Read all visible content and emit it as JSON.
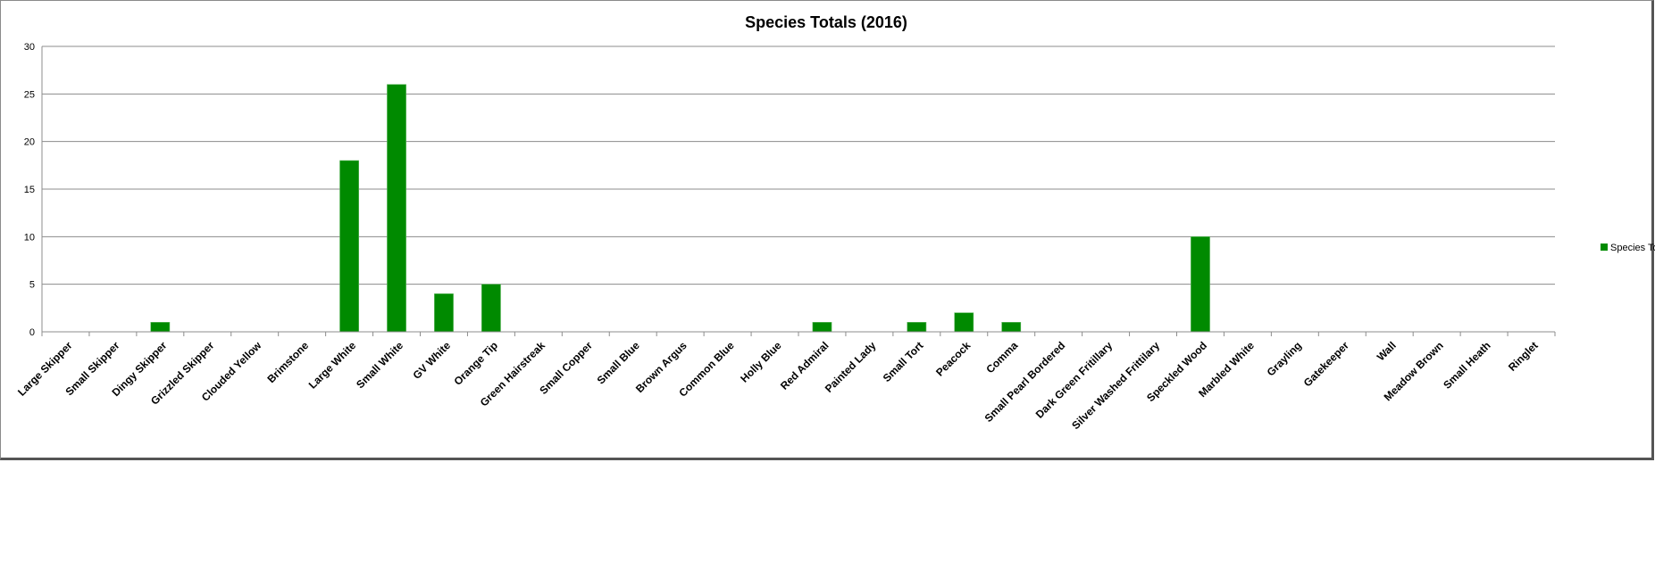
{
  "chart_data": {
    "type": "bar",
    "title": "Species Totals (2016)",
    "xlabel": "",
    "ylabel": "",
    "ylim": [
      0,
      30
    ],
    "yticks": [
      0,
      5,
      10,
      15,
      20,
      25,
      30
    ],
    "grid": true,
    "legend_position": "right",
    "categories": [
      "Large Skipper",
      "Small Skipper",
      "Dingy Skipper",
      "Grizzled Skipper",
      "Clouded Yellow",
      "Brimstone",
      "Large White",
      "Small White",
      "GV White",
      "Orange Tip",
      "Green Hairstreak",
      "Small Copper",
      "Small Blue",
      "Brown Argus",
      "Common Blue",
      "Holly Blue",
      "Red Admiral",
      "Painted Lady",
      "Small Tort",
      "Peacock",
      "Comma",
      "Small Pearl Bordered",
      "Dark Green Fritillary",
      "Silver Washed Frittilary",
      "Speckled Wood",
      "Marbled White",
      "Grayling",
      "Gatekeeper",
      "Wall",
      "Meadow Brown",
      "Small Heath",
      "Ringlet"
    ],
    "series": [
      {
        "name": "Species Totals",
        "color": "#008a00",
        "values": [
          0,
          0,
          1,
          0,
          0,
          0,
          18,
          26,
          4,
          5,
          0,
          0,
          0,
          0,
          0,
          0,
          1,
          0,
          1,
          2,
          1,
          0,
          0,
          0,
          10,
          0,
          0,
          0,
          0,
          0,
          0,
          0
        ]
      }
    ]
  }
}
